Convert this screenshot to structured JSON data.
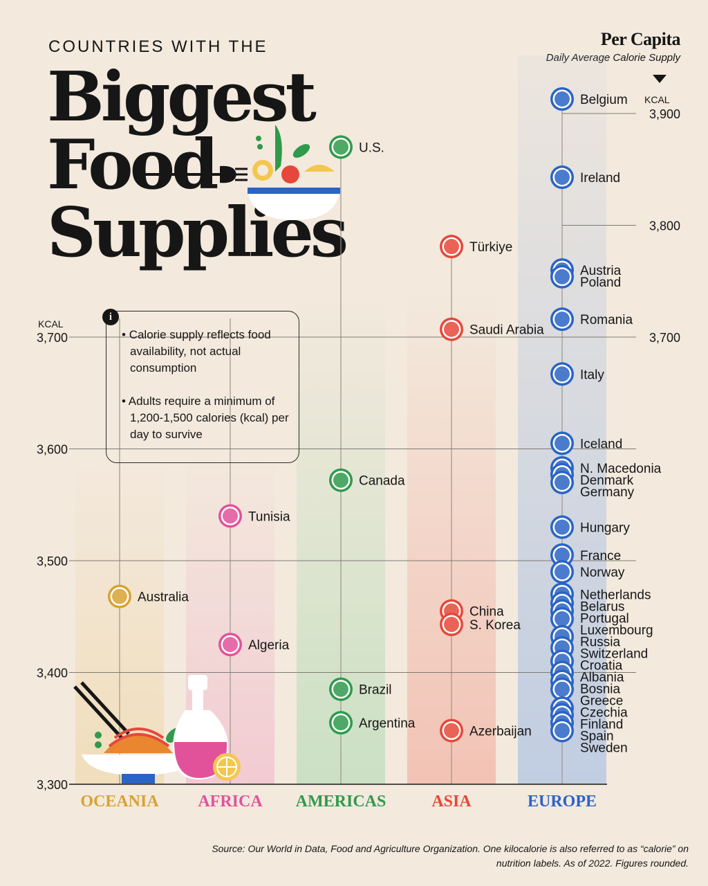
{
  "header": {
    "kicker": "COUNTRIES WITH THE",
    "title_lines": [
      "Biggest",
      "Food",
      "Supplies"
    ],
    "per_capita": "Per Capita",
    "subtitle": "Daily Average Calorie Supply"
  },
  "info": {
    "icon": "i",
    "points": [
      "Calorie supply reflects food availability, not actual consumption",
      "Adults require a minimum of 1,200-1,500 calories (kcal) per day to survive"
    ]
  },
  "source": "Source: Our World in Data, Food and Agriculture Organization. One kilocalorie is also referred to as “calorie” on nutrition labels. As of 2022. Figures rounded.",
  "colors": {
    "background": "#f3e9dd",
    "oceania": "#d8a232",
    "africa": "#e2529a",
    "americas": "#2f9a4c",
    "asia": "#e5483a",
    "europe": "#2a64c4"
  },
  "chart_data": {
    "type": "scatter",
    "y_unit": "KCAL",
    "ylim": [
      3300,
      3920
    ],
    "y_ticks": [
      3300,
      3400,
      3500,
      3600,
      3700,
      3800,
      3900
    ],
    "y_tick_labels": [
      "3,300",
      "3,400",
      "3,500",
      "3,600",
      "3,700",
      "3,800",
      "3,900"
    ],
    "left_axis_ticks": [
      3300,
      3400,
      3500,
      3600,
      3700
    ],
    "right_axis_ticks": [
      3700,
      3800,
      3900
    ],
    "categories": [
      "OCEANIA",
      "AFRICA",
      "AMERICAS",
      "ASIA",
      "EUROPE"
    ],
    "points": [
      {
        "region": "OCEANIA",
        "label": "Australia",
        "value": 3468
      },
      {
        "region": "AFRICA",
        "label": "Tunisia",
        "value": 3540
      },
      {
        "region": "AFRICA",
        "label": "Algeria",
        "value": 3425
      },
      {
        "region": "AMERICAS",
        "label": "U.S.",
        "value": 3870
      },
      {
        "region": "AMERICAS",
        "label": "Canada",
        "value": 3572
      },
      {
        "region": "AMERICAS",
        "label": "Brazil",
        "value": 3385
      },
      {
        "region": "AMERICAS",
        "label": "Argentina",
        "value": 3355
      },
      {
        "region": "ASIA",
        "label": "Türkiye",
        "value": 3781
      },
      {
        "region": "ASIA",
        "label": "Saudi Arabia",
        "value": 3707
      },
      {
        "region": "ASIA",
        "label": "China",
        "value": 3455
      },
      {
        "region": "ASIA",
        "label": "S. Korea",
        "value": 3443
      },
      {
        "region": "ASIA",
        "label": "Azerbaijan",
        "value": 3348
      },
      {
        "region": "EUROPE",
        "label": "Belgium",
        "value": 3913
      },
      {
        "region": "EUROPE",
        "label": "Ireland",
        "value": 3843
      },
      {
        "region": "EUROPE",
        "label": "Austria",
        "value": 3760
      },
      {
        "region": "EUROPE",
        "label": "Poland",
        "value": 3754
      },
      {
        "region": "EUROPE",
        "label": "Romania",
        "value": 3716
      },
      {
        "region": "EUROPE",
        "label": "Italy",
        "value": 3667
      },
      {
        "region": "EUROPE",
        "label": "Iceland",
        "value": 3605
      },
      {
        "region": "EUROPE",
        "label": "N. Macedonia",
        "value": 3583
      },
      {
        "region": "EUROPE",
        "label": "Denmark",
        "value": 3577
      },
      {
        "region": "EUROPE",
        "label": "Germany",
        "value": 3570
      },
      {
        "region": "EUROPE",
        "label": "Hungary",
        "value": 3530
      },
      {
        "region": "EUROPE",
        "label": "France",
        "value": 3505
      },
      {
        "region": "EUROPE",
        "label": "Norway",
        "value": 3490
      },
      {
        "region": "EUROPE",
        "label": "Netherlands",
        "value": 3470
      },
      {
        "region": "EUROPE",
        "label": "Belarus",
        "value": 3462
      },
      {
        "region": "EUROPE",
        "label": "Portugal",
        "value": 3455
      },
      {
        "region": "EUROPE",
        "label": "Luxembourg",
        "value": 3448
      },
      {
        "region": "EUROPE",
        "label": "Russia",
        "value": 3432
      },
      {
        "region": "EUROPE",
        "label": "Switzerland",
        "value": 3422
      },
      {
        "region": "EUROPE",
        "label": "Croatia",
        "value": 3410
      },
      {
        "region": "EUROPE",
        "label": "Albania",
        "value": 3400
      },
      {
        "region": "EUROPE",
        "label": "Bosnia",
        "value": 3392
      },
      {
        "region": "EUROPE",
        "label": "Greece",
        "value": 3385
      },
      {
        "region": "EUROPE",
        "label": "Czechia",
        "value": 3368
      },
      {
        "region": "EUROPE",
        "label": "Finland",
        "value": 3362
      },
      {
        "region": "EUROPE",
        "label": "Spain",
        "value": 3355
      },
      {
        "region": "EUROPE",
        "label": "Sweden",
        "value": 3348
      }
    ],
    "european_label_text": {
      "Belgium": "Belgium",
      "Ireland": "Ireland",
      "Austria": "Austria",
      "Poland": "Poland",
      "Romania": "Romania",
      "Italy": "Italy",
      "Iceland": "Iceland",
      "N. Macedonia": "N. Macedonia",
      "Denmark": "Denmark",
      "Germany": "Germany",
      "Hungary": "Hungary",
      "France": "France",
      "Norway": "Norway",
      "Netherlands": "Netherlands",
      "Belarus": "Belarus",
      "Portugal": "Portugal",
      "Luxembourg": "Luxembourg",
      "Russia": "Russia",
      "Switzerland": "Switzerland",
      "Croatia": "Croatia",
      "Albania": "Albania",
      "Bosnia": "Bosnia",
      "Greece": "Greece",
      "Czechia": "Czechia",
      "Finland": "Finland",
      "Spain": "Spain",
      "Sweden": "Sweden"
    }
  }
}
